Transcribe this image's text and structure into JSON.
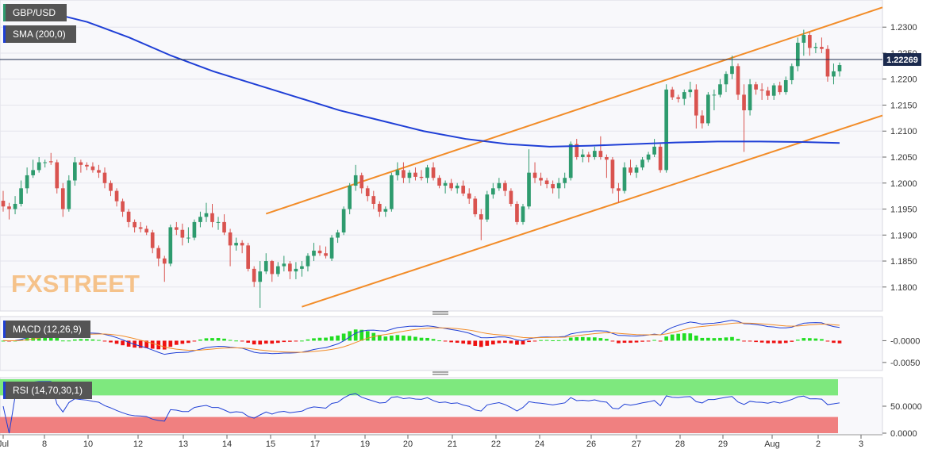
{
  "chart_data": {
    "type": "candlestick",
    "instrument": "GBP/USD",
    "watermark": "FXSTREET",
    "last_price": "1.22269",
    "main_pane": {
      "ylim": [
        1.176,
        1.234
      ],
      "yticks": [
        "1.2300",
        "1.2250",
        "1.2200",
        "1.2150",
        "1.2100",
        "1.2050",
        "1.2000",
        "1.1950",
        "1.1900",
        "1.1850",
        "1.1800"
      ],
      "indicator_label": "SMA (200,0)",
      "colors": {
        "up": "#2e9b6e",
        "down": "#d9534f",
        "sma": "#1f3fd6",
        "channel": "#f28c28",
        "last_line": "#1b2a4e"
      },
      "candles_ohlc": [
        [
          1.1966,
          1.1985,
          1.1945,
          1.1955
        ],
        [
          1.1955,
          1.1962,
          1.193,
          1.195
        ],
        [
          1.195,
          1.1975,
          1.194,
          1.196
        ],
        [
          1.196,
          1.2005,
          1.1955,
          1.199
        ],
        [
          1.199,
          1.203,
          1.198,
          1.2015
        ],
        [
          1.2015,
          1.2045,
          1.201,
          1.2025
        ],
        [
          1.2025,
          1.205,
          1.202,
          1.204
        ],
        [
          1.204,
          1.2045,
          1.203,
          1.204
        ],
        [
          1.2042,
          1.2058,
          1.2035,
          1.204
        ],
        [
          1.204,
          1.2045,
          1.198,
          1.199
        ],
        [
          1.199,
          1.2,
          1.1935,
          1.195
        ],
        [
          1.195,
          1.2015,
          1.1945,
          1.2005
        ],
        [
          1.2005,
          1.205,
          1.1995,
          1.204
        ],
        [
          1.204,
          1.2045,
          1.202,
          1.2035
        ],
        [
          1.2035,
          1.204,
          1.2025,
          1.2032
        ],
        [
          1.2032,
          1.204,
          1.202,
          1.2025
        ],
        [
          1.2025,
          1.2035,
          1.201,
          1.202
        ],
        [
          1.202,
          1.203,
          1.199,
          1.2
        ],
        [
          1.2,
          1.2005,
          1.1975,
          1.1985
        ],
        [
          1.1985,
          1.199,
          1.1955,
          1.1965
        ],
        [
          1.1965,
          1.197,
          1.1935,
          1.1945
        ],
        [
          1.1945,
          1.195,
          1.1915,
          1.1925
        ],
        [
          1.1925,
          1.193,
          1.1905,
          1.1915
        ],
        [
          1.1915,
          1.1925,
          1.1905,
          1.1912
        ],
        [
          1.1912,
          1.1918,
          1.19,
          1.1905
        ],
        [
          1.1905,
          1.191,
          1.1865,
          1.1875
        ],
        [
          1.1875,
          1.188,
          1.184,
          1.1855
        ],
        [
          1.1855,
          1.186,
          1.181,
          1.1845
        ],
        [
          1.1845,
          1.192,
          1.184,
          1.1915
        ],
        [
          1.1915,
          1.1925,
          1.19,
          1.191
        ],
        [
          1.191,
          1.1922,
          1.188,
          1.1895
        ],
        [
          1.1895,
          1.1915,
          1.1885,
          1.1895
        ],
        [
          1.1895,
          1.193,
          1.189,
          1.1925
        ],
        [
          1.1925,
          1.1945,
          1.1915,
          1.1935
        ],
        [
          1.1935,
          1.1962,
          1.1925,
          1.1942
        ],
        [
          1.1942,
          1.196,
          1.1915,
          1.1925
        ],
        [
          1.1925,
          1.1935,
          1.191,
          1.1925
        ],
        [
          1.1925,
          1.194,
          1.19,
          1.1905
        ],
        [
          1.1905,
          1.1912,
          1.184,
          1.188
        ],
        [
          1.188,
          1.1895,
          1.187,
          1.1885
        ],
        [
          1.1885,
          1.189,
          1.1865,
          1.188
        ],
        [
          1.188,
          1.1885,
          1.183,
          1.1835
        ],
        [
          1.1835,
          1.184,
          1.18,
          1.181
        ],
        [
          1.181,
          1.185,
          1.176,
          1.183
        ],
        [
          1.183,
          1.1865,
          1.1825,
          1.185
        ],
        [
          1.185,
          1.1852,
          1.181,
          1.1825
        ],
        [
          1.1825,
          1.1848,
          1.182,
          1.184
        ],
        [
          1.184,
          1.186,
          1.183,
          1.1845
        ],
        [
          1.1845,
          1.185,
          1.1815,
          1.183
        ],
        [
          1.183,
          1.1848,
          1.1815,
          1.1835
        ],
        [
          1.1835,
          1.185,
          1.182,
          1.184
        ],
        [
          1.184,
          1.1865,
          1.183,
          1.186
        ],
        [
          1.186,
          1.1885,
          1.185,
          1.187
        ],
        [
          1.187,
          1.188,
          1.186,
          1.1865
        ],
        [
          1.1865,
          1.1878,
          1.1855,
          1.186
        ],
        [
          1.1855,
          1.19,
          1.185,
          1.1895
        ],
        [
          1.1895,
          1.191,
          1.1885,
          1.1905
        ],
        [
          1.1905,
          1.1955,
          1.19,
          1.195
        ],
        [
          1.195,
          1.2,
          1.194,
          1.1995
        ],
        [
          1.1995,
          1.2035,
          1.1985,
          1.2015
        ],
        [
          1.2015,
          1.202,
          1.198,
          1.199
        ],
        [
          1.199,
          1.1995,
          1.1965,
          1.1975
        ],
        [
          1.1975,
          1.1985,
          1.195,
          1.196
        ],
        [
          1.196,
          1.1965,
          1.1935,
          1.1945
        ],
        [
          1.1945,
          1.1955,
          1.1935,
          1.195
        ],
        [
          1.195,
          1.202,
          1.1945,
          1.2015
        ],
        [
          1.2015,
          1.204,
          1.2005,
          1.2025
        ],
        [
          1.2025,
          1.204,
          1.2,
          1.201
        ],
        [
          1.201,
          1.2025,
          1.2,
          1.202
        ],
        [
          1.202,
          1.203,
          1.2005,
          1.2012
        ],
        [
          1.2012,
          1.2025,
          1.2005,
          1.201
        ],
        [
          1.201,
          1.2035,
          1.2,
          1.203
        ],
        [
          1.203,
          1.204,
          1.2005,
          1.201
        ],
        [
          1.201,
          1.2015,
          1.199,
          1.1995
        ],
        [
          1.1995,
          1.2005,
          1.198,
          1.2
        ],
        [
          1.2,
          1.2008,
          1.1985,
          1.199
        ],
        [
          1.199,
          1.2,
          1.198,
          1.1995
        ],
        [
          1.1995,
          1.2005,
          1.1975,
          1.198
        ],
        [
          1.198,
          1.199,
          1.196,
          1.197
        ],
        [
          1.197,
          1.1975,
          1.1935,
          1.194
        ],
        [
          1.194,
          1.195,
          1.189,
          1.193
        ],
        [
          1.193,
          1.1985,
          1.1925,
          1.1978
        ],
        [
          1.1978,
          1.2,
          1.197,
          1.199
        ],
        [
          1.199,
          1.201,
          1.1985,
          1.2
        ],
        [
          1.2,
          1.2005,
          1.1975,
          1.1985
        ],
        [
          1.1985,
          1.199,
          1.1955,
          1.196
        ],
        [
          1.196,
          1.1965,
          1.192,
          1.1925
        ],
        [
          1.1925,
          1.196,
          1.192,
          1.1955
        ],
        [
          1.1955,
          1.2065,
          1.195,
          1.202
        ],
        [
          1.202,
          1.204,
          1.2,
          1.201
        ],
        [
          1.201,
          1.202,
          1.1995,
          1.2005
        ],
        [
          1.2005,
          1.201,
          1.199,
          1.1998
        ],
        [
          1.1998,
          1.2005,
          1.198,
          1.199
        ],
        [
          1.199,
          1.201,
          1.197,
          1.2
        ],
        [
          1.2,
          1.202,
          1.199,
          1.201
        ],
        [
          1.201,
          1.208,
          1.2005,
          1.2075
        ],
        [
          1.2075,
          1.2085,
          1.2045,
          1.205
        ],
        [
          1.205,
          1.2065,
          1.204,
          1.2055
        ],
        [
          1.2055,
          1.206,
          1.204,
          1.205
        ],
        [
          1.205,
          1.207,
          1.2045,
          1.2062
        ],
        [
          1.2062,
          1.209,
          1.2045,
          1.205
        ],
        [
          1.205,
          1.2055,
          1.201,
          1.2045
        ],
        [
          1.2045,
          1.205,
          1.198,
          1.199
        ],
        [
          1.199,
          1.2,
          1.1962,
          1.1985
        ],
        [
          1.1985,
          1.204,
          1.198,
          1.203
        ],
        [
          1.203,
          1.2045,
          1.2015,
          1.202
        ],
        [
          1.202,
          1.2035,
          1.201,
          1.203
        ],
        [
          1.203,
          1.205,
          1.2025,
          1.2045
        ],
        [
          1.2045,
          1.206,
          1.204,
          1.2055
        ],
        [
          1.2055,
          1.2085,
          1.205,
          1.207
        ],
        [
          1.207,
          1.2075,
          1.202,
          1.2025
        ],
        [
          1.2025,
          1.219,
          1.202,
          1.218
        ],
        [
          1.218,
          1.2185,
          1.216,
          1.2165
        ],
        [
          1.2165,
          1.217,
          1.2155,
          1.2162
        ],
        [
          1.2162,
          1.218,
          1.215,
          1.2175
        ],
        [
          1.2175,
          1.2195,
          1.2165,
          1.218
        ],
        [
          1.218,
          1.219,
          1.2105,
          1.213
        ],
        [
          1.213,
          1.214,
          1.2105,
          1.2115
        ],
        [
          1.2115,
          1.2175,
          1.211,
          1.217
        ],
        [
          1.217,
          1.218,
          1.214,
          1.217
        ],
        [
          1.217,
          1.22,
          1.2165,
          1.219
        ],
        [
          1.219,
          1.2215,
          1.2175,
          1.221
        ],
        [
          1.221,
          1.2245,
          1.22,
          1.2225
        ],
        [
          1.2225,
          1.223,
          1.216,
          1.217
        ],
        [
          1.217,
          1.219,
          1.206,
          1.214
        ],
        [
          1.214,
          1.22,
          1.213,
          1.219
        ],
        [
          1.219,
          1.2195,
          1.217,
          1.218
        ],
        [
          1.218,
          1.2192,
          1.216,
          1.2178
        ],
        [
          1.2178,
          1.2185,
          1.216,
          1.2168
        ],
        [
          1.2168,
          1.2192,
          1.216,
          1.2188
        ],
        [
          1.2188,
          1.2195,
          1.217,
          1.2175
        ],
        [
          1.2175,
          1.2205,
          1.217,
          1.2198
        ],
        [
          1.2198,
          1.223,
          1.219,
          1.2225
        ],
        [
          1.2225,
          1.228,
          1.2215,
          1.227
        ],
        [
          1.227,
          1.2295,
          1.2245,
          1.2285
        ],
        [
          1.2285,
          1.229,
          1.2245,
          1.226
        ],
        [
          1.226,
          1.227,
          1.225,
          1.2262
        ],
        [
          1.2262,
          1.228,
          1.225,
          1.2258
        ],
        [
          1.2258,
          1.2265,
          1.2195,
          1.2205
        ],
        [
          1.2205,
          1.223,
          1.219,
          1.2215
        ],
        [
          1.2215,
          1.2232,
          1.2205,
          1.2227
        ]
      ],
      "sma_200": [
        [
          0,
          1.234
        ],
        [
          20,
          1.233
        ],
        [
          40,
          1.231
        ],
        [
          60,
          1.228
        ],
        [
          80,
          1.2245
        ],
        [
          100,
          1.2215
        ],
        [
          120,
          1.219
        ],
        [
          140,
          1.2165
        ],
        [
          160,
          1.214
        ],
        [
          180,
          1.212
        ],
        [
          200,
          1.21
        ],
        [
          220,
          1.2085
        ],
        [
          240,
          1.2075
        ],
        [
          260,
          1.207
        ],
        [
          280,
          1.2072
        ],
        [
          300,
          1.2075
        ],
        [
          320,
          1.2078
        ],
        [
          340,
          1.208
        ],
        [
          360,
          1.208
        ],
        [
          380,
          1.2079
        ],
        [
          398,
          1.2077
        ]
      ],
      "channel_upper": [
        [
          1.194,
          1.234
        ]
      ],
      "channel_lower": [
        [
          1.176,
          1.213
        ]
      ]
    },
    "macd_pane": {
      "label": "MACD (12,26,9)",
      "yticks": [
        "-0.0000",
        "-0.0050"
      ],
      "ylim": [
        -0.0063,
        0.005
      ],
      "colors": {
        "macd": "#1f3fd6",
        "signal": "#f28c28",
        "hist_pos": "#22dd22",
        "hist_neg": "#ee1111"
      }
    },
    "rsi_pane": {
      "label": "RSI (14,70,30,1)",
      "yticks": [
        "50.0000",
        "0.0000"
      ],
      "ylim": [
        0,
        100
      ],
      "colors": {
        "line": "#1f3fd6",
        "overbought": "#7ee87e",
        "oversold": "#f08080"
      }
    },
    "x_tick_labels": [
      "Jul",
      "8",
      "10",
      "12",
      "13",
      "14",
      "15",
      "17",
      "19",
      "20",
      "21",
      "22",
      "24",
      "26",
      "27",
      "28",
      "29",
      "Aug",
      "2",
      "3"
    ]
  }
}
